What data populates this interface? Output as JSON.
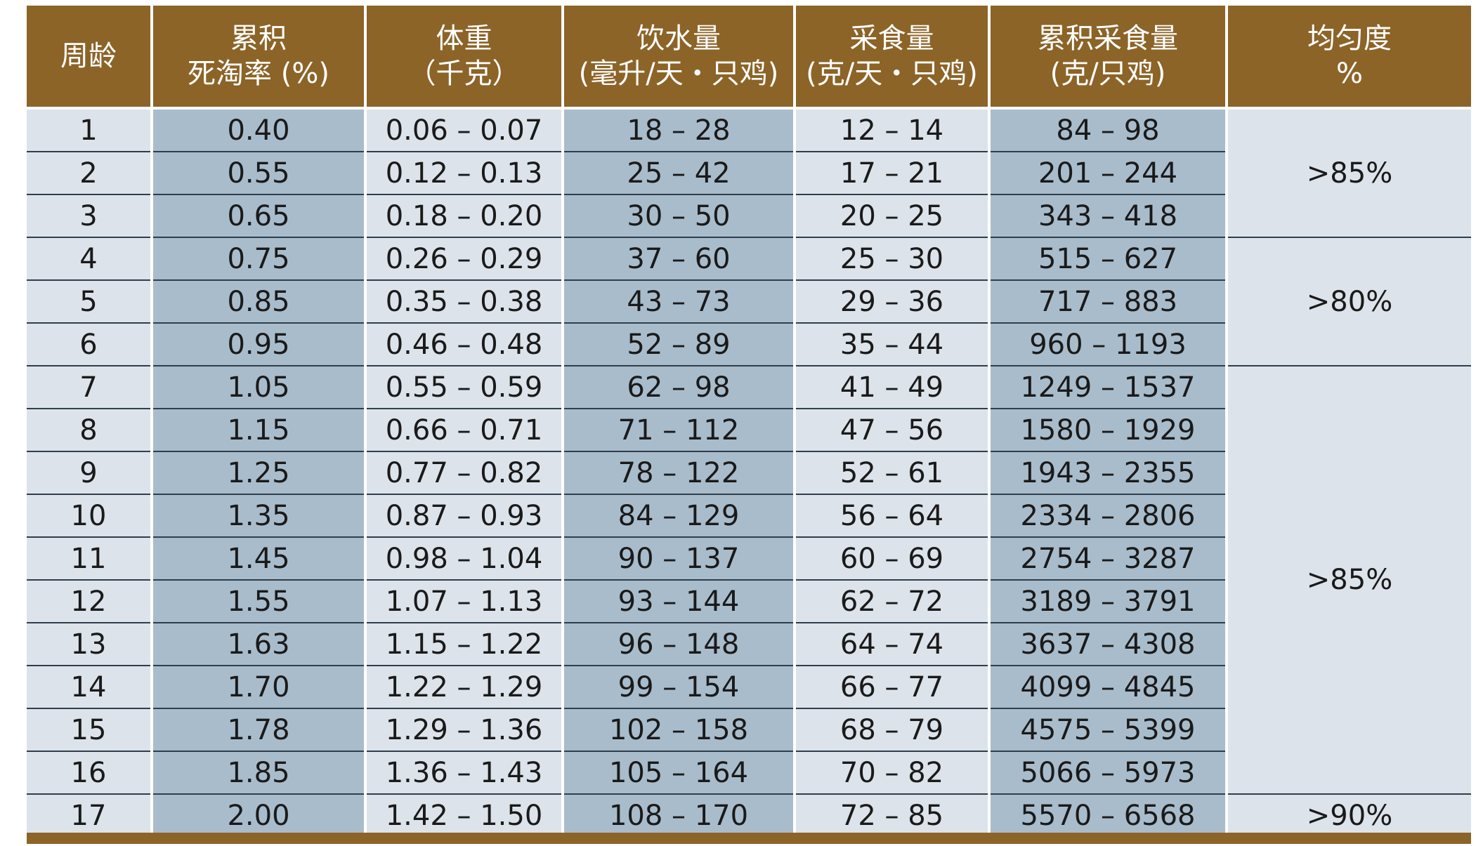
{
  "header": {
    "week": "周龄",
    "mortality": [
      "累积",
      "死淘率 (%)"
    ],
    "weight": [
      "体重",
      "（千克）"
    ],
    "water": [
      "饮水量",
      "(毫升/天・只鸡)"
    ],
    "feed": [
      "采食量",
      "(克/天・只鸡)"
    ],
    "cum_feed": [
      "累积采食量",
      "(克/只鸡)"
    ],
    "uniformity": [
      "均匀度",
      "%"
    ]
  },
  "rows": [
    {
      "week": "1",
      "mortality": "0.40",
      "weight": "0.06 – 0.07",
      "water": "18 – 28",
      "feed": "12 – 14",
      "cum_feed": "84 – 98"
    },
    {
      "week": "2",
      "mortality": "0.55",
      "weight": "0.12 – 0.13",
      "water": "25 – 42",
      "feed": "17 – 21",
      "cum_feed": "201 – 244"
    },
    {
      "week": "3",
      "mortality": "0.65",
      "weight": "0.18 – 0.20",
      "water": "30 – 50",
      "feed": "20 – 25",
      "cum_feed": "343 – 418"
    },
    {
      "week": "4",
      "mortality": "0.75",
      "weight": "0.26 – 0.29",
      "water": "37 – 60",
      "feed": "25 – 30",
      "cum_feed": "515 – 627"
    },
    {
      "week": "5",
      "mortality": "0.85",
      "weight": "0.35 – 0.38",
      "water": "43 – 73",
      "feed": "29 – 36",
      "cum_feed": "717 – 883"
    },
    {
      "week": "6",
      "mortality": "0.95",
      "weight": "0.46 – 0.48",
      "water": "52 – 89",
      "feed": "35 – 44",
      "cum_feed": "960 – 1193"
    },
    {
      "week": "7",
      "mortality": "1.05",
      "weight": "0.55 – 0.59",
      "water": "62 – 98",
      "feed": "41 – 49",
      "cum_feed": "1249 – 1537"
    },
    {
      "week": "8",
      "mortality": "1.15",
      "weight": "0.66 – 0.71",
      "water": "71 – 112",
      "feed": "47 – 56",
      "cum_feed": "1580 – 1929"
    },
    {
      "week": "9",
      "mortality": "1.25",
      "weight": "0.77 – 0.82",
      "water": "78 – 122",
      "feed": "52 – 61",
      "cum_feed": "1943 – 2355"
    },
    {
      "week": "10",
      "mortality": "1.35",
      "weight": "0.87 – 0.93",
      "water": "84 – 129",
      "feed": "56 – 64",
      "cum_feed": "2334 – 2806"
    },
    {
      "week": "11",
      "mortality": "1.45",
      "weight": "0.98 – 1.04",
      "water": "90 – 137",
      "feed": "60 – 69",
      "cum_feed": "2754 – 3287"
    },
    {
      "week": "12",
      "mortality": "1.55",
      "weight": "1.07 – 1.13",
      "water": "93 – 144",
      "feed": "62 – 72",
      "cum_feed": "3189 – 3791"
    },
    {
      "week": "13",
      "mortality": "1.63",
      "weight": "1.15 – 1.22",
      "water": "96 – 148",
      "feed": "64 – 74",
      "cum_feed": "3637 – 4308"
    },
    {
      "week": "14",
      "mortality": "1.70",
      "weight": "1.22 – 1.29",
      "water": "99 – 154",
      "feed": "66 – 77",
      "cum_feed": "4099 – 4845"
    },
    {
      "week": "15",
      "mortality": "1.78",
      "weight": "1.29 – 1.36",
      "water": "102 – 158",
      "feed": "68 – 79",
      "cum_feed": "4575 – 5399"
    },
    {
      "week": "16",
      "mortality": "1.85",
      "weight": "1.36 – 1.43",
      "water": "105 – 164",
      "feed": "70 – 82",
      "cum_feed": "5066 – 5973"
    },
    {
      "week": "17",
      "mortality": "2.00",
      "weight": "1.42 – 1.50",
      "water": "108 – 170",
      "feed": "72 – 85",
      "cum_feed": "5570 – 6568"
    }
  ],
  "uniformity": [
    {
      "label": ">85%",
      "rows": 3
    },
    {
      "label": ">80%",
      "rows": 3
    },
    {
      "label": ">85%",
      "rows": 10
    },
    {
      "label": ">90%",
      "rows": 1
    }
  ],
  "colors": {
    "header_bg": "#8c6428",
    "cell_light": "#dde3ea",
    "cell_dark": "#a9bccb",
    "row_line": "#2e3e4c"
  }
}
